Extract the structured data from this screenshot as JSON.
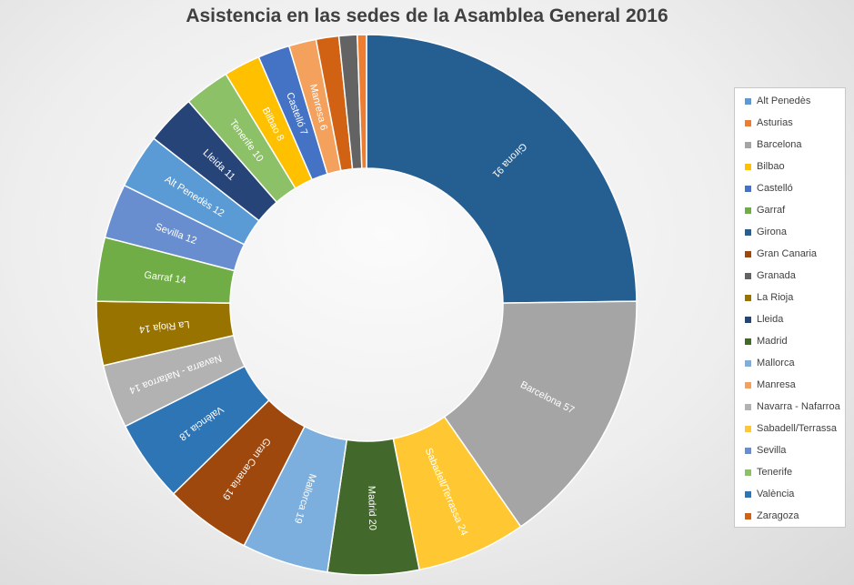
{
  "chart_data": {
    "type": "pie",
    "variant": "doughnut",
    "title": "Asistencia en las sedes de la Asamblea General  2016",
    "legend_position": "right",
    "slices": [
      {
        "name": "Girona",
        "value": 91,
        "label": "Girona 91",
        "color": "#255e91"
      },
      {
        "name": "Barcelona",
        "value": 57,
        "label": "Barcelona 57",
        "color": "#a5a5a5"
      },
      {
        "name": "Sabadell/Terrassa",
        "value": 24,
        "label": "Sabadell/Terrassa 24",
        "color": "#ffc832"
      },
      {
        "name": "Madrid",
        "value": 20,
        "label": "Madrid 20",
        "color": "#43682b"
      },
      {
        "name": "Mallorca",
        "value": 19,
        "label": "Mallorca 19",
        "color": "#7cafdd"
      },
      {
        "name": "Gran Canaria",
        "value": 19,
        "label": "Gran Canaria 19",
        "color": "#9e480e"
      },
      {
        "name": "València",
        "value": 18,
        "label": "València 18",
        "color": "#2e75b6"
      },
      {
        "name": "Navarra - Nafarroa",
        "value": 14,
        "label": "Navarra - Nafarroa 14",
        "color": "#b2b2b2"
      },
      {
        "name": "La Rioja",
        "value": 14,
        "label": "La Rioja 14",
        "color": "#997300"
      },
      {
        "name": "Garraf",
        "value": 14,
        "label": "Garraf 14",
        "color": "#70ad47"
      },
      {
        "name": "Sevilla",
        "value": 12,
        "label": "Sevilla 12",
        "color": "#698ed0"
      },
      {
        "name": "Alt Penedès",
        "value": 12,
        "label": "Alt Penedès 12",
        "color": "#5b9bd5"
      },
      {
        "name": "Lleida",
        "value": 11,
        "label": "Lleida 11",
        "color": "#264478"
      },
      {
        "name": "Tenerife",
        "value": 10,
        "label": "Tenerife 10",
        "color": "#8cc168"
      },
      {
        "name": "Bilbao",
        "value": 8,
        "label": "Bilbao 8",
        "color": "#ffc000"
      },
      {
        "name": "Castelló",
        "value": 7,
        "label": "Castelló 7",
        "color": "#4472c4"
      },
      {
        "name": "Manresa",
        "value": 6,
        "label": "Manresa 6",
        "color": "#f4a15d"
      },
      {
        "name": "Zaragoza",
        "value": 5,
        "label": "",
        "color": "#d16213"
      },
      {
        "name": "Granada",
        "value": 4,
        "label": "",
        "color": "#636363"
      },
      {
        "name": "Asturias",
        "value": 2,
        "label": "",
        "color": "#ed7d31"
      }
    ],
    "legend": [
      {
        "name": "Alt Penedès",
        "color": "#5b9bd5"
      },
      {
        "name": "Asturias",
        "color": "#ed7d31"
      },
      {
        "name": "Barcelona",
        "color": "#a5a5a5"
      },
      {
        "name": "Bilbao",
        "color": "#ffc000"
      },
      {
        "name": "Castelló",
        "color": "#4472c4"
      },
      {
        "name": "Garraf",
        "color": "#70ad47"
      },
      {
        "name": "Girona",
        "color": "#255e91"
      },
      {
        "name": "Gran Canaria",
        "color": "#9e480e"
      },
      {
        "name": "Granada",
        "color": "#636363"
      },
      {
        "name": "La Rioja",
        "color": "#997300"
      },
      {
        "name": "Lleida",
        "color": "#264478"
      },
      {
        "name": "Madrid",
        "color": "#43682b"
      },
      {
        "name": "Mallorca",
        "color": "#7cafdd"
      },
      {
        "name": "Manresa",
        "color": "#f4a15d"
      },
      {
        "name": "Navarra - Nafarroa",
        "color": "#b2b2b2"
      },
      {
        "name": "Sabadell/Terrassa",
        "color": "#ffc832"
      },
      {
        "name": "Sevilla",
        "color": "#698ed0"
      },
      {
        "name": "Tenerife",
        "color": "#8cc168"
      },
      {
        "name": "València",
        "color": "#2e75b6"
      },
      {
        "name": "Zaragoza",
        "color": "#d16213"
      }
    ]
  }
}
